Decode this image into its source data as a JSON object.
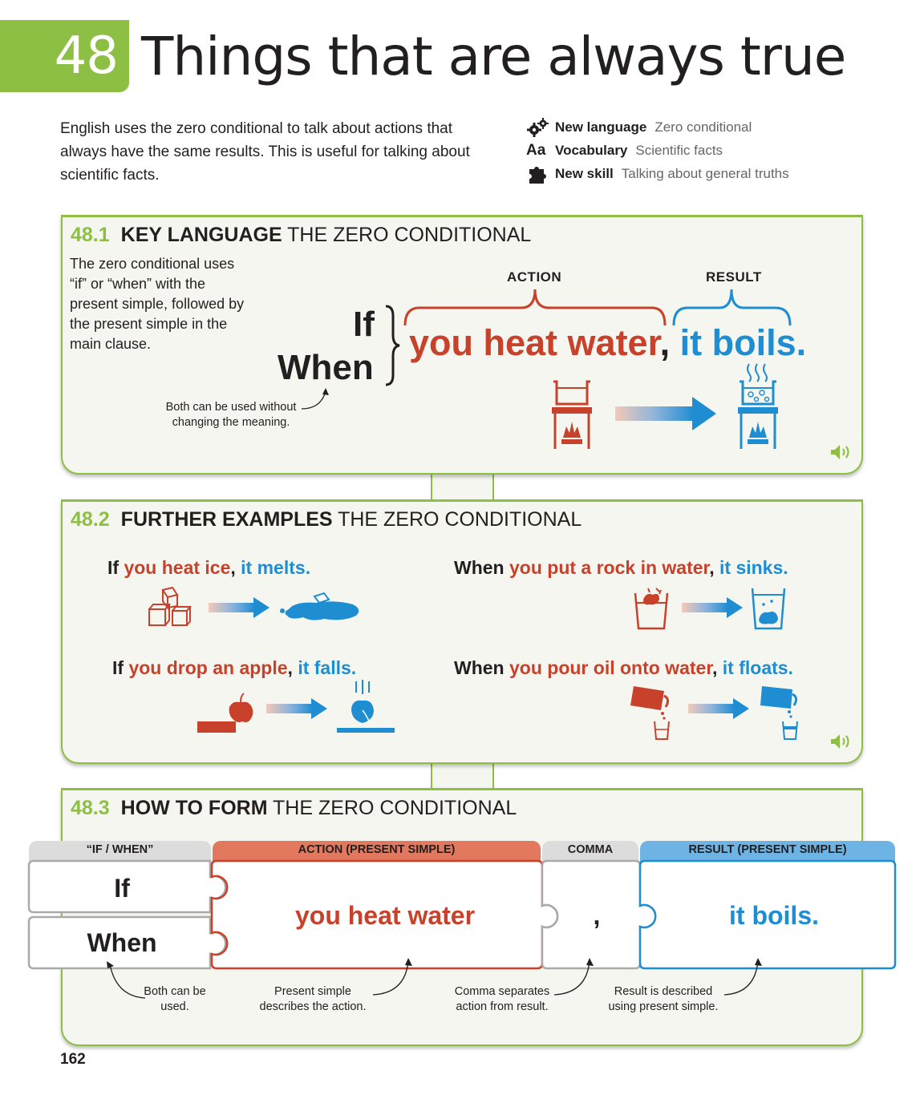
{
  "header": {
    "unit_number": "48",
    "title": "Things that are always true",
    "intro": "English uses the zero conditional to talk about actions that always have the same results. This is useful for talking about scientific facts.",
    "meta": [
      {
        "icon": "gears-icon",
        "label": "New language",
        "value": "Zero conditional"
      },
      {
        "icon": "aa-icon",
        "icon_text": "Aa",
        "label": "Vocabulary",
        "value": "Scientific facts"
      },
      {
        "icon": "puzzle-icon",
        "label": "New skill",
        "value": "Talking about general truths"
      }
    ]
  },
  "section1": {
    "number": "48.1",
    "heading_bold": "KEY LANGUAGE",
    "heading_rest": "THE ZERO CONDITIONAL",
    "description": "The zero conditional uses “if” or “when” with the present simple, followed by the present simple in the main clause.",
    "label_action": "ACTION",
    "label_result": "RESULT",
    "word_if": "If",
    "word_when": "When",
    "action_text": "you heat water",
    "comma": ",",
    "result_text": "it boils.",
    "note": "Both can be used without changing the meaning."
  },
  "section2": {
    "number": "48.2",
    "heading_bold": "FURTHER EXAMPLES",
    "heading_rest": "THE ZERO CONDITIONAL",
    "examples": [
      {
        "conj": "If",
        "action": "you heat ice",
        "comma": ",",
        "result": "it melts."
      },
      {
        "conj": "When",
        "action": "you put a rock in water",
        "comma": ",",
        "result": "it sinks."
      },
      {
        "conj": "If",
        "action": "you drop an apple",
        "comma": ",",
        "result": "it falls."
      },
      {
        "conj": "When",
        "action": "you pour oil onto water",
        "comma": ",",
        "result": "it floats."
      }
    ]
  },
  "section3": {
    "number": "48.3",
    "heading_bold": "HOW TO FORM",
    "heading_rest": "THE ZERO CONDITIONAL",
    "tabs": {
      "if_when": "“IF / WHEN”",
      "action": "ACTION (PRESENT SIMPLE)",
      "comma": "COMMA",
      "result": "RESULT (PRESENT SIMPLE)"
    },
    "piece_if": "If",
    "piece_when": "When",
    "piece_action": "you heat water",
    "piece_comma": ",",
    "piece_result": "it boils.",
    "notes": {
      "both": "Both can be used.",
      "present": "Present simple describes the action.",
      "comma": "Comma separates action from result.",
      "result": "Result is described using present simple."
    }
  },
  "page_number": "162",
  "colors": {
    "green": "#8dbf44",
    "red": "#c8412b",
    "blue": "#1f8dd1",
    "panel_bg": "#f5f6ef"
  }
}
